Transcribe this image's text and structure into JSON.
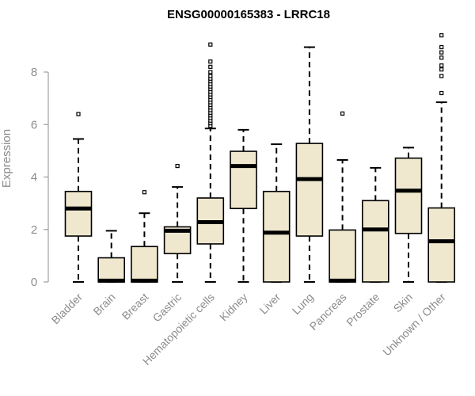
{
  "chart_data": {
    "type": "box",
    "title": "ENSG00000165383 - LRRC18",
    "xlabel": "",
    "ylabel": "Expression",
    "ylim": [
      0,
      9.5
    ],
    "yticks": [
      0,
      2,
      4,
      6,
      8
    ],
    "box_fill": "#efe8cf",
    "categories": [
      "Bladder",
      "Brain",
      "Breast",
      "Gastric",
      "Hematopoietic cells",
      "Kidney",
      "Liver",
      "Lung",
      "Pancreas",
      "Prostate",
      "Skin",
      "Unknown / Other"
    ],
    "boxes": [
      {
        "min": 0,
        "q1": 1.75,
        "median": 2.8,
        "q3": 3.45,
        "max": 5.45,
        "outliers": [
          6.4
        ]
      },
      {
        "min": 0,
        "q1": 0,
        "median": 0.05,
        "q3": 0.92,
        "max": 1.95,
        "outliers": []
      },
      {
        "min": 0,
        "q1": 0,
        "median": 0.05,
        "q3": 1.35,
        "max": 2.62,
        "outliers": [
          3.42
        ]
      },
      {
        "min": 0,
        "q1": 1.08,
        "median": 1.95,
        "q3": 2.1,
        "max": 3.62,
        "outliers": [
          4.42
        ]
      },
      {
        "min": 0,
        "q1": 1.45,
        "median": 2.28,
        "q3": 3.2,
        "max": 5.85,
        "outliers": [
          5.95,
          6.05,
          6.15,
          6.25,
          6.35,
          6.45,
          6.55,
          6.65,
          6.75,
          6.85,
          6.95,
          7.05,
          7.15,
          7.25,
          7.35,
          7.45,
          7.55,
          7.65,
          7.75,
          7.85,
          8.0,
          8.2,
          8.4,
          9.05
        ]
      },
      {
        "min": 0,
        "q1": 2.8,
        "median": 4.42,
        "q3": 4.98,
        "max": 5.8,
        "outliers": []
      },
      {
        "min": 0,
        "q1": 0,
        "median": 1.88,
        "q3": 3.45,
        "max": 5.25,
        "outliers": []
      },
      {
        "min": 0,
        "q1": 1.75,
        "median": 3.92,
        "q3": 5.28,
        "max": 8.95,
        "outliers": []
      },
      {
        "min": 0,
        "q1": 0,
        "median": 0.05,
        "q3": 1.98,
        "max": 4.65,
        "outliers": [
          6.42
        ]
      },
      {
        "min": 0,
        "q1": 0,
        "median": 2.0,
        "q3": 3.1,
        "max": 4.35,
        "outliers": []
      },
      {
        "min": 0,
        "q1": 1.85,
        "median": 3.48,
        "q3": 4.72,
        "max": 5.12,
        "outliers": []
      },
      {
        "min": 0,
        "q1": 0,
        "median": 1.55,
        "q3": 2.82,
        "max": 6.85,
        "outliers": [
          7.2,
          7.85,
          8.1,
          8.25,
          8.55,
          8.75,
          8.95,
          9.4
        ]
      }
    ]
  }
}
